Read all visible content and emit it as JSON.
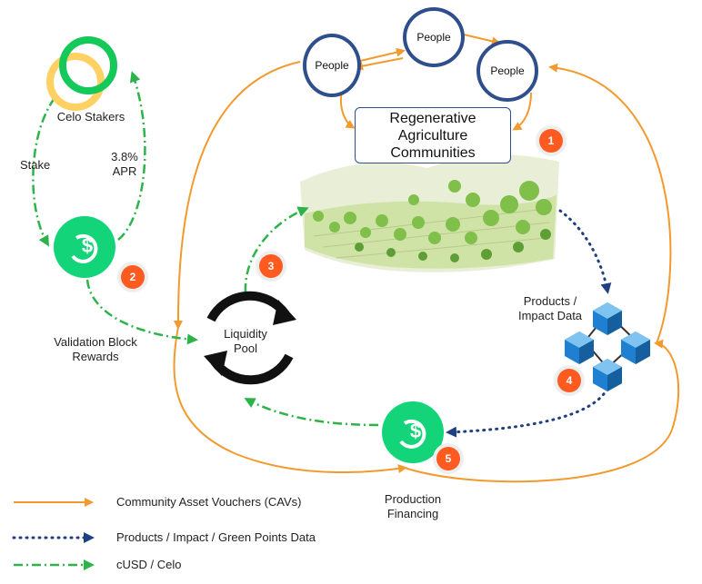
{
  "stakers": {
    "label": "Celo Stakers",
    "stake_label": "Stake",
    "apr_label": "3.8%\nAPR"
  },
  "nodes": {
    "people": [
      "People",
      "People",
      "People"
    ],
    "community_box": "Regenerative\nAgriculture\nCommunities",
    "liquidity_pool": "Liquidity\nPool",
    "products_label": "Products /\nImpact Data",
    "validation_label": "Validation Block\nRewards",
    "production_label": "Production\nFinancing"
  },
  "badges": [
    "1",
    "2",
    "3",
    "4",
    "5"
  ],
  "legend": [
    {
      "label": "Community Asset Vouchers (CAVs)",
      "style": "solid",
      "color": "#f29a2e"
    },
    {
      "label": "Products / Impact / Green Points Data",
      "style": "dotted",
      "color": "#1f3f80"
    },
    {
      "label": "cUSD / Celo",
      "style": "dashdot",
      "color": "#2db34a"
    }
  ],
  "colors": {
    "cav": "#f29a2e",
    "data": "#1f3f80",
    "cusd": "#2db34a",
    "badge": "#ff5a1f",
    "people_border": "#2e4e8c",
    "coin": "#14d47a",
    "staker_green": "#14c85a",
    "staker_yellow": "#ffd062"
  },
  "icons": {
    "coin": "dollar-coin-icon",
    "pool": "refresh-cycle-icon",
    "blockchain": "blockchain-cubes-icon",
    "farm": "farm-landscape-illustration"
  }
}
